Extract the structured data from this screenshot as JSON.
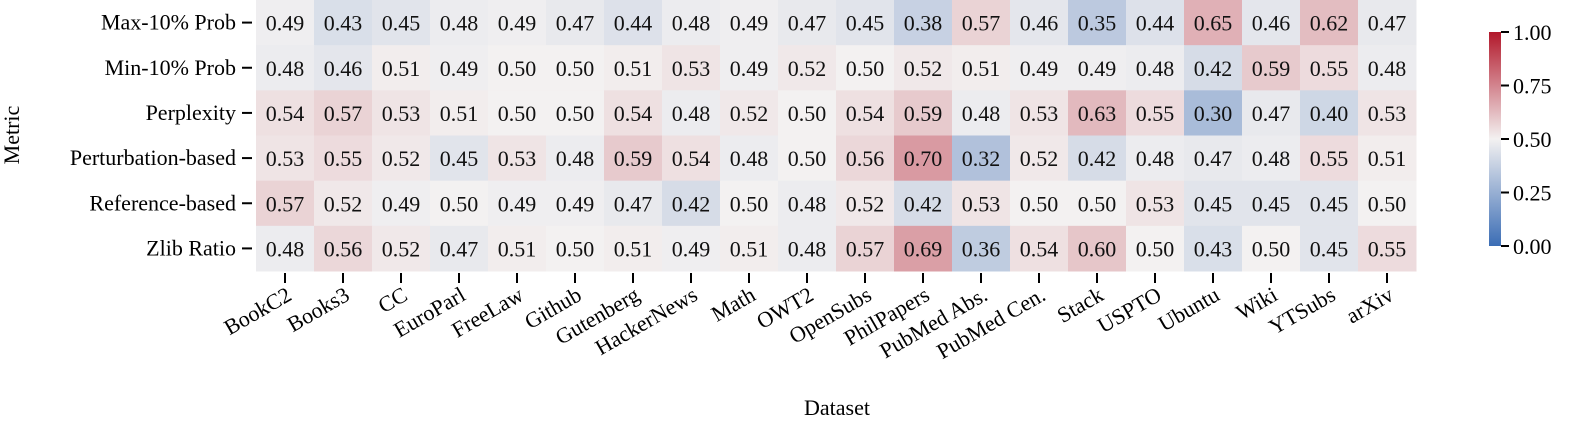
{
  "chart_data": {
    "type": "heatmap",
    "xlabel": "Dataset",
    "ylabel": "Metric",
    "x_categories": [
      "BookC2",
      "Books3",
      "CC",
      "EuroParl",
      "FreeLaw",
      "Github",
      "Gutenberg",
      "HackerNews",
      "Math",
      "OWT2",
      "OpenSubs",
      "PhilPapers",
      "PubMed Abs.",
      "PubMed Cen.",
      "Stack",
      "USPTO",
      "Ubuntu",
      "Wiki",
      "YTSubs",
      "arXiv"
    ],
    "y_categories": [
      "Max-10% Prob",
      "Min-10% Prob",
      "Perplexity",
      "Perturbation-based",
      "Reference-based",
      "Zlib Ratio"
    ],
    "values": [
      [
        0.49,
        0.43,
        0.45,
        0.48,
        0.49,
        0.47,
        0.44,
        0.48,
        0.49,
        0.47,
        0.45,
        0.38,
        0.57,
        0.46,
        0.35,
        0.44,
        0.65,
        0.46,
        0.62,
        0.47
      ],
      [
        0.48,
        0.46,
        0.51,
        0.49,
        0.5,
        0.5,
        0.51,
        0.53,
        0.49,
        0.52,
        0.5,
        0.52,
        0.51,
        0.49,
        0.49,
        0.48,
        0.42,
        0.59,
        0.55,
        0.48
      ],
      [
        0.54,
        0.57,
        0.53,
        0.51,
        0.5,
        0.5,
        0.54,
        0.48,
        0.52,
        0.5,
        0.54,
        0.59,
        0.48,
        0.53,
        0.63,
        0.55,
        0.3,
        0.47,
        0.4,
        0.53
      ],
      [
        0.53,
        0.55,
        0.52,
        0.45,
        0.53,
        0.48,
        0.59,
        0.54,
        0.48,
        0.5,
        0.56,
        0.7,
        0.32,
        0.52,
        0.42,
        0.48,
        0.47,
        0.48,
        0.55,
        0.51
      ],
      [
        0.57,
        0.52,
        0.49,
        0.5,
        0.49,
        0.49,
        0.47,
        0.42,
        0.5,
        0.48,
        0.52,
        0.42,
        0.53,
        0.5,
        0.5,
        0.53,
        0.45,
        0.45,
        0.45,
        0.5
      ],
      [
        0.48,
        0.56,
        0.52,
        0.47,
        0.51,
        0.5,
        0.51,
        0.49,
        0.51,
        0.48,
        0.57,
        0.69,
        0.36,
        0.54,
        0.6,
        0.5,
        0.43,
        0.5,
        0.45,
        0.55
      ]
    ],
    "vmin": 0.0,
    "vmax": 1.0,
    "colormap": "coolwarm (blue → white → red)",
    "colors": {
      "low": "#3b6db5",
      "mid": "#f3f1f1",
      "high": "#b2182b"
    },
    "colorbar": {
      "ticks": [
        0.0,
        0.25,
        0.5,
        0.75,
        1.0
      ],
      "tick_labels": [
        "0.00",
        "0.25",
        "0.50",
        "0.75",
        "1.00"
      ]
    }
  }
}
